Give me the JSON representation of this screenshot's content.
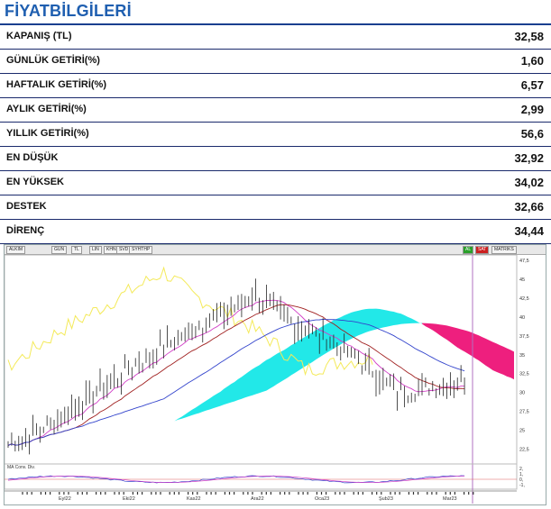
{
  "header": {
    "title": "FİYATBİLGİLERİ"
  },
  "rows": [
    {
      "label": "KAPANIŞ  (TL)",
      "value": "32,58"
    },
    {
      "label": "GÜNLÜK GETİRİ(%)",
      "value": "1,60"
    },
    {
      "label": "HAFTALIK GETİRİ(%)",
      "value": "6,57"
    },
    {
      "label": "AYLIK GETİRİ(%)",
      "value": "2,99"
    },
    {
      "label": "YILLIK  GETİRİ(%)",
      "value": "56,6"
    },
    {
      "label": "EN DÜŞÜK",
      "value": "32,92"
    },
    {
      "label": "EN YÜKSEK",
      "value": "34,02"
    },
    {
      "label": "DESTEK",
      "value": "32,66"
    },
    {
      "label": "DİRENÇ",
      "value": "34,44"
    }
  ],
  "toolbar": {
    "symbol": "ALKIM",
    "period": "GUN",
    "currency": "TL",
    "scale": "LIN",
    "view": "KHN",
    "svd": "SVD",
    "symthp": "SYHTHP",
    "buy": "AL",
    "sell": "SAT",
    "matriks": "MATRIKS"
  },
  "chart_data": {
    "type": "candlestick",
    "y_ticks": [
      "47,5",
      "45",
      "42,5",
      "40",
      "37,5",
      "35",
      "32,5",
      "30",
      "27,5",
      "25",
      "22,5"
    ],
    "ylim": [
      21,
      48
    ],
    "x_labels": [
      "Eyl22",
      "Eki22",
      "Kas22",
      "Ara22",
      "Oca23",
      "Şub23",
      "Mar23"
    ],
    "indicator_label": "MA Conv. Div.",
    "indicator_ticks": [
      "2,",
      "1,",
      "0,",
      "-1,"
    ],
    "colors": {
      "cloud_bull": "#22e8e8",
      "cloud_bear": "#ee1f7e",
      "lagging": "#f4ea5a",
      "ma_fast": "#d23fc7",
      "ma_mid": "#a02020",
      "ma_slow": "#3344cc",
      "candle": "#222222"
    }
  }
}
